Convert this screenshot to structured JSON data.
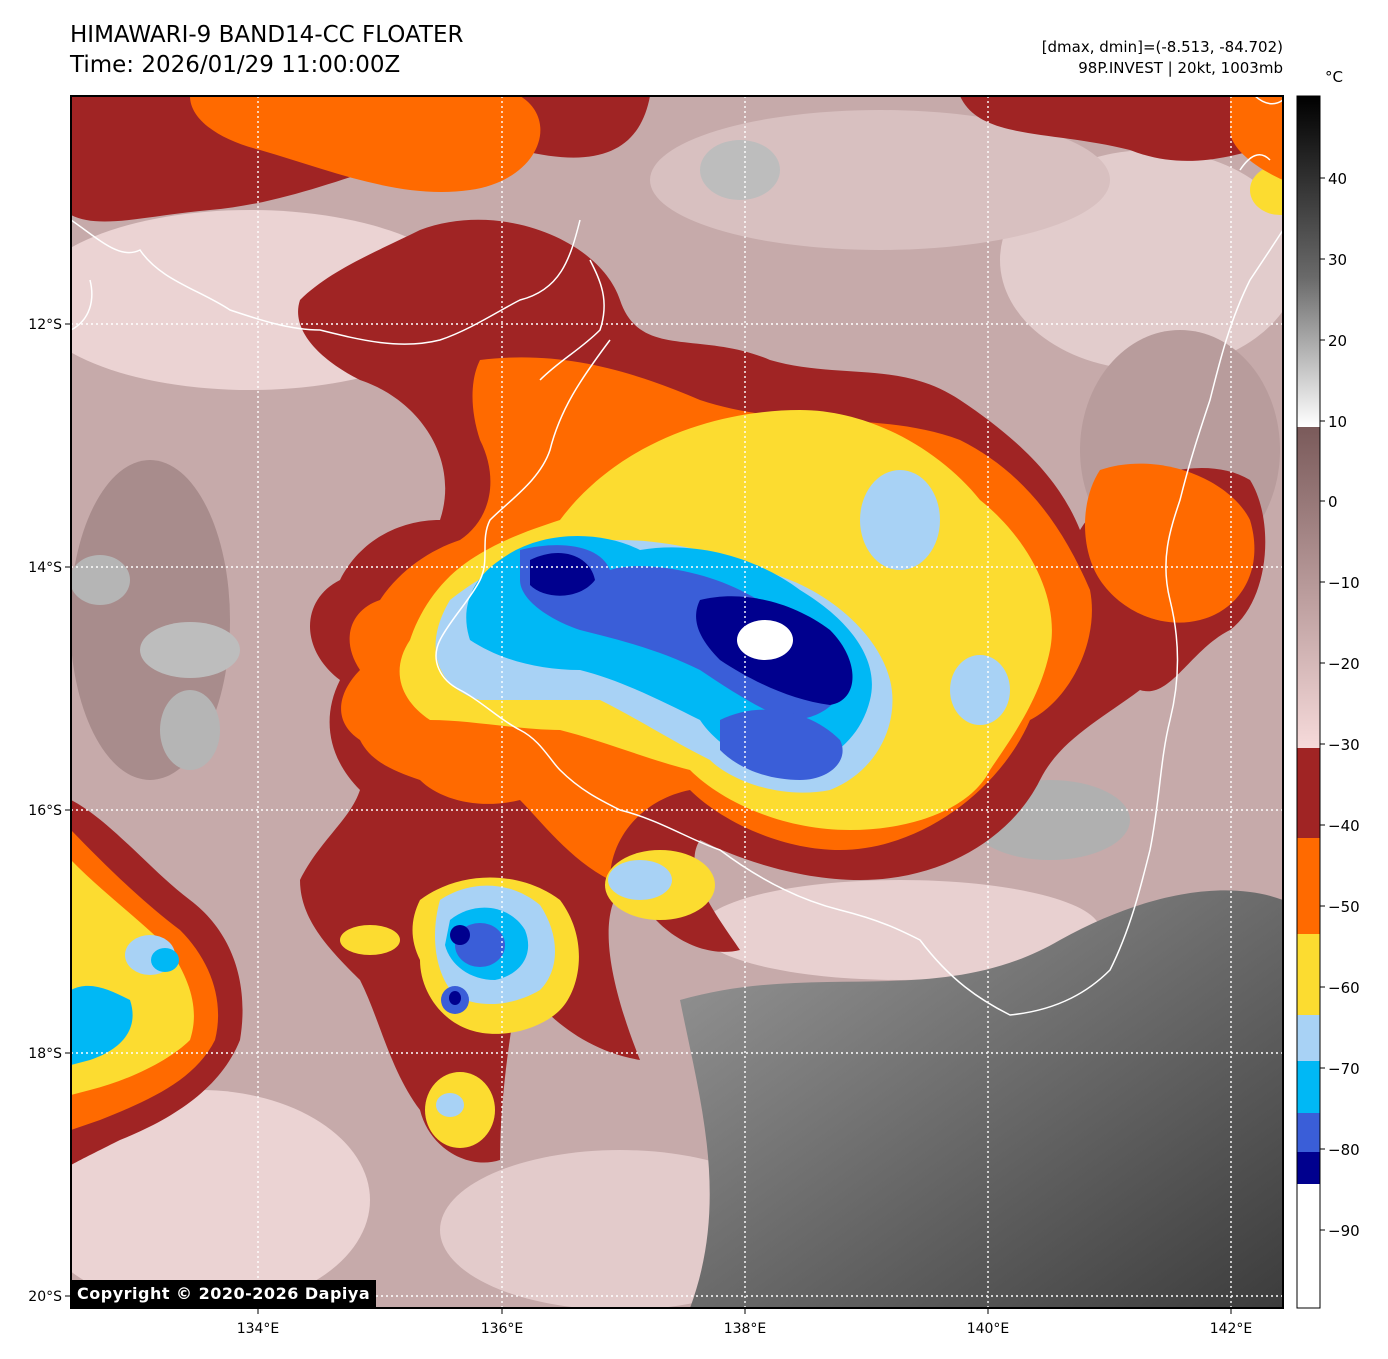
{
  "title": {
    "line1": "HIMAWARI-9 BAND14-CC FLOATER",
    "line2": "Time: 2026/01/29 11:00:00Z"
  },
  "stats": {
    "range": "[dmax, dmin]=(-8.513, -84.702)",
    "storm": "98P.INVEST | 20kt, 1003mb"
  },
  "colorbar": {
    "unit": "°C",
    "ticks": [
      "40",
      "30",
      "20",
      "10",
      "0",
      "−10",
      "−20",
      "−30",
      "−40",
      "−50",
      "−60",
      "−70",
      "−80",
      "−90"
    ]
  },
  "map": {
    "lon_labels": [
      "134°E",
      "136°E",
      "138°E",
      "140°E",
      "142°E"
    ],
    "lat_labels": [
      "12°S",
      "14°S",
      "16°S",
      "18°S",
      "20°S"
    ]
  },
  "copyright": "Copyright © 2020-2026 Dapiya",
  "palette": {
    "maroon": "#a02424",
    "orange": "#ff6a00",
    "yellow": "#fcdc30",
    "light_blue": "#a8d2f5",
    "cyan": "#00b8f5",
    "royal_blue": "#3a5ed8",
    "navy": "#00008e"
  }
}
